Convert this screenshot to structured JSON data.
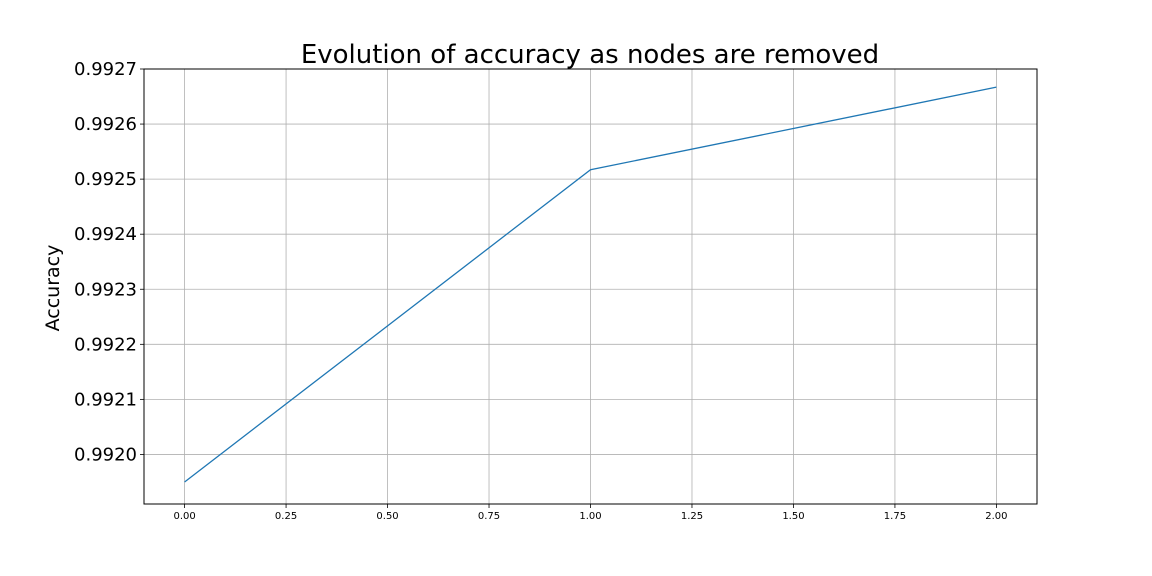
{
  "chart_data": {
    "type": "line",
    "title": "Evolution of accuracy as nodes are removed",
    "xlabel": "",
    "ylabel": "Accuracy",
    "x": [
      0,
      1,
      2
    ],
    "series": [
      {
        "values": [
          0.99195,
          0.992517,
          0.992667
        ],
        "color": "#1f77b4"
      }
    ],
    "xlim": [
      -0.1,
      2.1
    ],
    "ylim": [
      0.99191,
      0.9927
    ],
    "x_ticks": [
      0.0,
      0.25,
      0.5,
      0.75,
      1.0,
      1.25,
      1.5,
      1.75,
      2.0
    ],
    "x_tick_labels": [
      "0.00",
      "0.25",
      "0.50",
      "0.75",
      "1.00",
      "1.25",
      "1.50",
      "1.75",
      "2.00"
    ],
    "y_ticks": [
      0.992,
      0.9921,
      0.9922,
      0.9923,
      0.9924,
      0.9925,
      0.9926,
      0.9927
    ],
    "y_tick_labels": [
      "0.9920",
      "0.9921",
      "0.9922",
      "0.9923",
      "0.9924",
      "0.9925",
      "0.9926",
      "0.9927"
    ],
    "grid": true,
    "legend": "none"
  }
}
